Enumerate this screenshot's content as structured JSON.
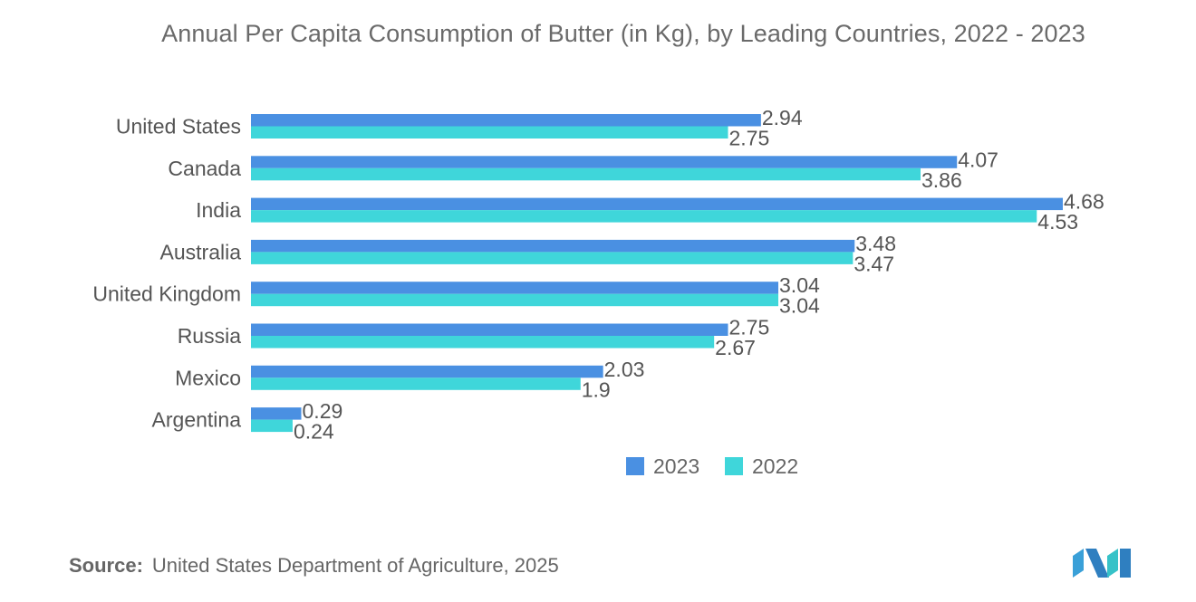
{
  "chart_data": {
    "type": "bar",
    "orientation": "horizontal",
    "title": "Annual Per Capita Consumption of Butter (in Kg), by Leading Countries, 2022 - 2023",
    "categories": [
      "United States",
      "Canada",
      "India",
      "Australia",
      "United Kingdom",
      "Russia",
      "Mexico",
      "Argentina"
    ],
    "series": [
      {
        "name": "2023",
        "color": "#4a90e2",
        "values": [
          2.94,
          4.07,
          4.68,
          3.48,
          3.04,
          2.75,
          2.03,
          0.29
        ]
      },
      {
        "name": "2022",
        "color": "#3fd6da",
        "values": [
          2.75,
          3.86,
          4.53,
          3.47,
          3.04,
          2.67,
          1.9,
          0.24
        ]
      }
    ],
    "xlim": [
      0,
      4.68
    ],
    "grid": false,
    "legend_position": "bottom"
  },
  "source": {
    "label": "Source:",
    "text": "United States Department of Agriculture, 2025"
  }
}
